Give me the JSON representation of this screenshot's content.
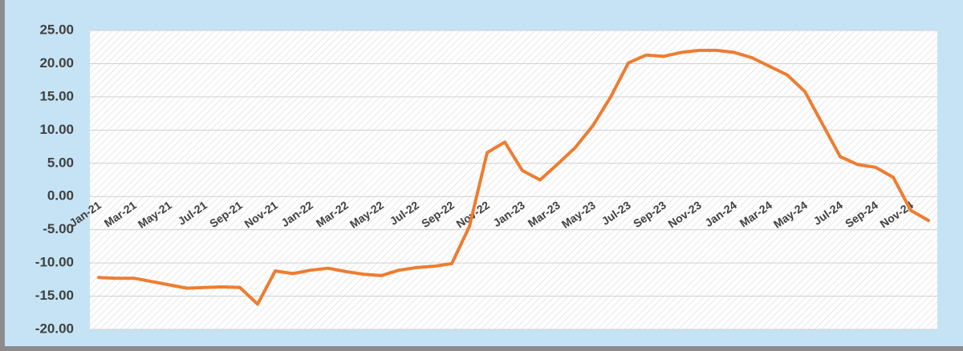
{
  "chart_data": {
    "type": "line",
    "categories": [
      "Jan-21",
      null,
      "Mar-21",
      null,
      "May-21",
      null,
      "Jul-21",
      null,
      "Sep-21",
      null,
      "Nov-21",
      null,
      "Jan-22",
      null,
      "Mar-22",
      null,
      "May-22",
      null,
      "Jul-22",
      null,
      "Sep-22",
      null,
      "Nov-22",
      null,
      "Jan-23",
      null,
      "Mar-23",
      null,
      "May-23",
      null,
      "Jul-23",
      null,
      "Sep-23",
      null,
      "Nov-23",
      null,
      "Jan-24",
      null,
      "Mar-24",
      null,
      "May-24",
      null,
      "Jul-24",
      null,
      "Sep-24",
      null,
      "Nov-24",
      null
    ],
    "series": [
      {
        "color": "#ed7d31",
        "values": [
          -12.2,
          -12.3,
          -12.3,
          -12.8,
          -13.3,
          -13.8,
          -13.7,
          -13.6,
          -13.7,
          -16.2,
          -11.2,
          -11.6,
          -11.1,
          -10.8,
          -11.3,
          -11.7,
          -11.9,
          -11.1,
          -10.7,
          -10.5,
          -10.1,
          -4.5,
          6.6,
          8.2,
          3.9,
          2.5,
          4.9,
          7.4,
          10.7,
          15.0,
          20.1,
          21.3,
          21.1,
          21.7,
          22.0,
          22.0,
          21.7,
          20.9,
          19.6,
          18.3,
          15.8,
          10.9,
          6.0,
          4.8,
          4.4,
          2.9,
          -2.1,
          -3.6
        ]
      }
    ],
    "ylim": [
      -20,
      25
    ],
    "yticks": [
      {
        "value": 25,
        "label": "25.00"
      },
      {
        "value": 20,
        "label": "20.00"
      },
      {
        "value": 15,
        "label": "15.00"
      },
      {
        "value": 10,
        "label": "10.00"
      },
      {
        "value": 5,
        "label": "5.00"
      },
      {
        "value": 0,
        "label": "0.00"
      },
      {
        "value": -5,
        "label": "-5.00"
      },
      {
        "value": -10,
        "label": "-10.00"
      },
      {
        "value": -15,
        "label": "-15.00"
      },
      {
        "value": -20,
        "label": "-20.00"
      }
    ],
    "grid": true
  }
}
